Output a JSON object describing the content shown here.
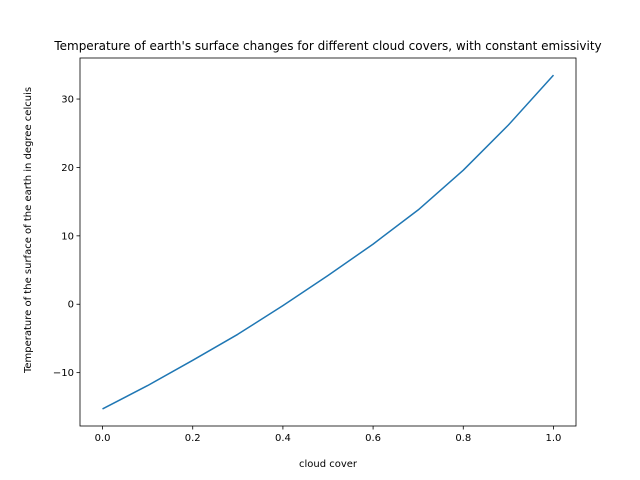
{
  "chart_data": {
    "type": "line",
    "title": "Temperature of earth's surface changes for different cloud covers, with constant emissivity",
    "xlabel": "cloud cover",
    "ylabel": "Temperature of the surface of the earth in degree celcuis",
    "xlim": [
      -0.05,
      1.05
    ],
    "ylim": [
      -17.8,
      36.0
    ],
    "x_ticks": [
      0.0,
      0.2,
      0.4,
      0.6,
      0.8,
      1.0
    ],
    "x_tick_labels": [
      "0.0",
      "0.2",
      "0.4",
      "0.6",
      "0.8",
      "1.0"
    ],
    "y_ticks": [
      -10,
      0,
      10,
      20,
      30
    ],
    "y_tick_labels": [
      "−10",
      "0",
      "10",
      "20",
      "30"
    ],
    "grid": false,
    "series": [
      {
        "color": "#1f77b4",
        "x": [
          0.0,
          0.1,
          0.2,
          0.3,
          0.4,
          0.5,
          0.6,
          0.7,
          0.8,
          0.9,
          1.0
        ],
        "y": [
          -15.3,
          -11.9,
          -8.2,
          -4.4,
          -0.2,
          4.2,
          8.8,
          13.8,
          19.6,
          26.2,
          33.5
        ]
      }
    ]
  }
}
